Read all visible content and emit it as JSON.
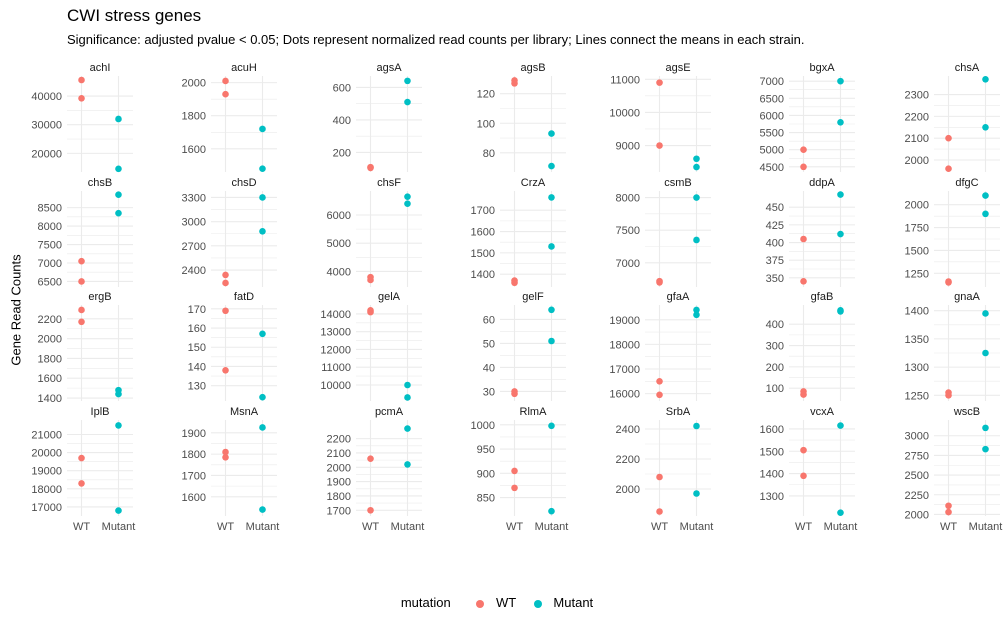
{
  "title": "CWI stress genes",
  "subtitle": "Significance: adjusted pvalue < 0.05; Dots represent normalized read counts per library; Lines connect the means in each strain.",
  "colors": {
    "WT": "#F8766D",
    "Mutant": "#00BFC4",
    "grid": "#EBEBEB"
  },
  "legend": {
    "title": "mutation",
    "items": [
      {
        "label": "WT",
        "color": "#F8766D"
      },
      {
        "label": "Mutant",
        "color": "#00BFC4"
      }
    ]
  },
  "chart_data": {
    "type": "scatter",
    "ylabel": "Gene Read Counts",
    "xlabel": "",
    "categories": [
      "WT",
      "Mutant"
    ],
    "panels": [
      {
        "name": "achI",
        "ticks": [
          20000,
          30000,
          40000
        ],
        "tick_labels": [
          "20000",
          "30000",
          "40000"
        ],
        "ylim": [
          13500,
          47000
        ],
        "WT": [
          45600,
          39200
        ],
        "Mutant": [
          32000,
          14600
        ]
      },
      {
        "name": "acuH",
        "ticks": [
          1600,
          1800,
          2000
        ],
        "tick_labels": [
          "1600",
          "1800",
          "2000"
        ],
        "ylim": [
          1460,
          2040
        ],
        "WT": [
          2010,
          1930
        ],
        "Mutant": [
          1720,
          1480
        ]
      },
      {
        "name": "agsA",
        "ticks": [
          200,
          400,
          600
        ],
        "tick_labels": [
          "200",
          "400",
          "600"
        ],
        "ylim": [
          80,
          670
        ],
        "WT": [
          110,
          105
        ],
        "Mutant": [
          640,
          510
        ]
      },
      {
        "name": "agsB",
        "ticks": [
          80,
          100,
          120
        ],
        "tick_labels": [
          "80",
          "100",
          "120"
        ],
        "ylim": [
          67,
          132
        ],
        "WT": [
          129,
          127
        ],
        "Mutant": [
          93,
          71
        ]
      },
      {
        "name": "agsE",
        "ticks": [
          9000,
          10000,
          11000
        ],
        "tick_labels": [
          "9000",
          "10000",
          "11000"
        ],
        "ylim": [
          8200,
          11100
        ],
        "WT": [
          10900,
          9000
        ],
        "Mutant": [
          8600,
          8350
        ]
      },
      {
        "name": "bgxA",
        "ticks": [
          4500,
          5000,
          5500,
          6000,
          6500,
          7000
        ],
        "tick_labels": [
          "4500",
          "5000",
          "5500",
          "6000",
          "6500",
          "7000"
        ],
        "ylim": [
          4350,
          7150
        ],
        "WT": [
          5000,
          4500
        ],
        "Mutant": [
          7000,
          5800
        ]
      },
      {
        "name": "chsA",
        "ticks": [
          2000,
          2100,
          2200,
          2300
        ],
        "tick_labels": [
          "2000",
          "2100",
          "2200",
          "2300"
        ],
        "ylim": [
          1945,
          2385
        ],
        "WT": [
          2100,
          1960
        ],
        "Mutant": [
          2370,
          2150
        ]
      },
      {
        "name": "chsB",
        "ticks": [
          6500,
          7000,
          7500,
          8000,
          8500
        ],
        "tick_labels": [
          "6500",
          "7000",
          "7500",
          "8000",
          "8500"
        ],
        "ylim": [
          6350,
          8950
        ],
        "WT": [
          7050,
          6500
        ],
        "Mutant": [
          8850,
          8350
        ]
      },
      {
        "name": "chsD",
        "ticks": [
          2400,
          2700,
          3000,
          3300
        ],
        "tick_labels": [
          "2400",
          "2700",
          "3000",
          "3300"
        ],
        "ylim": [
          2190,
          3380
        ],
        "WT": [
          2340,
          2240
        ],
        "Mutant": [
          3300,
          2880
        ]
      },
      {
        "name": "chsF",
        "ticks": [
          4000,
          5000,
          6000
        ],
        "tick_labels": [
          "4000",
          "5000",
          "6000"
        ],
        "ylim": [
          3450,
          6850
        ],
        "WT": [
          3800,
          3700
        ],
        "Mutant": [
          6650,
          6400
        ]
      },
      {
        "name": "CrzA",
        "ticks": [
          1400,
          1500,
          1600,
          1700
        ],
        "tick_labels": [
          "1400",
          "1500",
          "1600",
          "1700"
        ],
        "ylim": [
          1340,
          1790
        ],
        "WT": [
          1370,
          1360
        ],
        "Mutant": [
          1760,
          1530
        ]
      },
      {
        "name": "csmB",
        "ticks": [
          7000,
          7500,
          8000
        ],
        "tick_labels": [
          "7000",
          "7500",
          "8000"
        ],
        "ylim": [
          6630,
          8100
        ],
        "WT": [
          6720,
          6700
        ],
        "Mutant": [
          8000,
          7350
        ]
      },
      {
        "name": "ddpA",
        "ticks": [
          350,
          375,
          400,
          425,
          450
        ],
        "tick_labels": [
          "350",
          "375",
          "400",
          "425",
          "450"
        ],
        "ylim": [
          337,
          473
        ],
        "WT": [
          405,
          345
        ],
        "Mutant": [
          468,
          412
        ]
      },
      {
        "name": "dfgC",
        "ticks": [
          1250,
          1500,
          1750,
          2000
        ],
        "tick_labels": [
          "1250",
          "1500",
          "1750",
          "2000"
        ],
        "ylim": [
          1100,
          2150
        ],
        "WT": [
          1160,
          1150
        ],
        "Mutant": [
          2100,
          1900
        ]
      },
      {
        "name": "ergB",
        "ticks": [
          1400,
          1600,
          1800,
          2000,
          2200
        ],
        "tick_labels": [
          "1400",
          "1600",
          "1800",
          "2000",
          "2200"
        ],
        "ylim": [
          1370,
          2340
        ],
        "WT": [
          2290,
          2170
        ],
        "Mutant": [
          1480,
          1440
        ]
      },
      {
        "name": "fatD",
        "ticks": [
          130,
          140,
          150,
          160,
          170
        ],
        "tick_labels": [
          "130",
          "140",
          "150",
          "160",
          "170"
        ],
        "ylim": [
          122,
          172
        ],
        "WT": [
          169,
          138
        ],
        "Mutant": [
          157,
          124
        ]
      },
      {
        "name": "gelA",
        "ticks": [
          10000,
          11000,
          12000,
          13000,
          14000
        ],
        "tick_labels": [
          "10000",
          "11000",
          "12000",
          "13000",
          "14000"
        ],
        "ylim": [
          9100,
          14500
        ],
        "WT": [
          14200,
          14100
        ],
        "Mutant": [
          10000,
          9300
        ]
      },
      {
        "name": "gelF",
        "ticks": [
          30,
          40,
          50,
          60
        ],
        "tick_labels": [
          "30",
          "40",
          "50",
          "60"
        ],
        "ylim": [
          26,
          66
        ],
        "WT": [
          30,
          29
        ],
        "Mutant": [
          64,
          51
        ]
      },
      {
        "name": "gfaA",
        "ticks": [
          16000,
          17000,
          18000,
          19000
        ],
        "tick_labels": [
          "16000",
          "17000",
          "18000",
          "19000"
        ],
        "ylim": [
          15700,
          19600
        ],
        "WT": [
          16500,
          15950
        ],
        "Mutant": [
          19400,
          19200
        ]
      },
      {
        "name": "gfaB",
        "ticks": [
          100,
          200,
          300,
          400
        ],
        "tick_labels": [
          "100",
          "200",
          "300",
          "400"
        ],
        "ylim": [
          40,
          490
        ],
        "WT": [
          85,
          70
        ],
        "Mutant": [
          465,
          460
        ]
      },
      {
        "name": "gnaA",
        "ticks": [
          1250,
          1300,
          1350,
          1400
        ],
        "tick_labels": [
          "1250",
          "1300",
          "1350",
          "1400"
        ],
        "ylim": [
          1240,
          1410
        ],
        "WT": [
          1255,
          1250
        ],
        "Mutant": [
          1395,
          1325
        ]
      },
      {
        "name": "IplB",
        "ticks": [
          17000,
          18000,
          19000,
          20000,
          21000
        ],
        "tick_labels": [
          "17000",
          "18000",
          "19000",
          "20000",
          "21000"
        ],
        "ylim": [
          16500,
          21800
        ],
        "WT": [
          19700,
          18300
        ],
        "Mutant": [
          21500,
          16800
        ]
      },
      {
        "name": "MsnA",
        "ticks": [
          1600,
          1700,
          1800,
          1900
        ],
        "tick_labels": [
          "1600",
          "1700",
          "1800",
          "1900"
        ],
        "ylim": [
          1510,
          1960
        ],
        "WT": [
          1810,
          1785
        ],
        "Mutant": [
          1925,
          1540
        ]
      },
      {
        "name": "pcmA",
        "ticks": [
          1700,
          1800,
          1900,
          2000,
          2100,
          2200
        ],
        "tick_labels": [
          "1700",
          "1800",
          "1900",
          "2000",
          "2100",
          "2200"
        ],
        "ylim": [
          1660,
          2330
        ],
        "WT": [
          2060,
          1700
        ],
        "Mutant": [
          2270,
          2020
        ]
      },
      {
        "name": "RlmA",
        "ticks": [
          850,
          900,
          950,
          1000
        ],
        "tick_labels": [
          "850",
          "900",
          "950",
          "1000"
        ],
        "ylim": [
          812,
          1010
        ],
        "WT": [
          905,
          870
        ],
        "Mutant": [
          998,
          822
        ]
      },
      {
        "name": "SrbA",
        "ticks": [
          2000,
          2200,
          2400
        ],
        "tick_labels": [
          "2000",
          "2200",
          "2400"
        ],
        "ylim": [
          1820,
          2460
        ],
        "WT": [
          2080,
          1850
        ],
        "Mutant": [
          2420,
          1970
        ]
      },
      {
        "name": "vcxA",
        "ticks": [
          1300,
          1400,
          1500,
          1600
        ],
        "tick_labels": [
          "1300",
          "1400",
          "1500",
          "1600"
        ],
        "ylim": [
          1210,
          1640
        ],
        "WT": [
          1505,
          1390
        ],
        "Mutant": [
          1615,
          1225
        ]
      },
      {
        "name": "wscB",
        "ticks": [
          2000,
          2250,
          2500,
          2750,
          3000
        ],
        "tick_labels": [
          "2000",
          "2250",
          "2500",
          "2750",
          "3000"
        ],
        "ylim": [
          1980,
          3200
        ],
        "WT": [
          2110,
          2030
        ],
        "Mutant": [
          3100,
          2830
        ]
      }
    ]
  }
}
